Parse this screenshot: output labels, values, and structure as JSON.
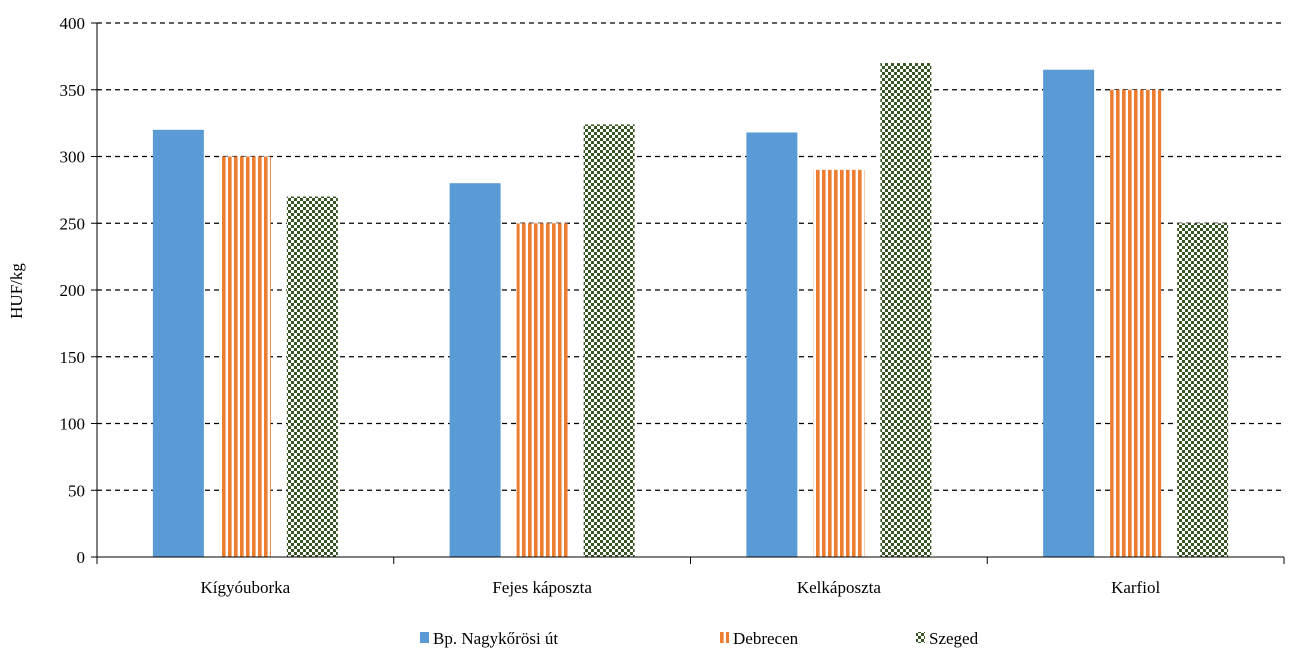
{
  "chart_data": {
    "type": "bar",
    "title": "",
    "xlabel": "",
    "ylabel": "HUF/kg",
    "ylim": [
      0,
      400
    ],
    "ytick_step": 50,
    "grid": "horizontal dashed",
    "legend_position": "bottom",
    "categories": [
      "Kígyóuborka",
      "Fejes káposzta",
      "Kelkáposzta",
      "Karfiol"
    ],
    "series": [
      {
        "name": "Bp. Nagykőrösi út",
        "values": [
          320,
          280,
          318,
          365
        ],
        "color": "#5B9BD5",
        "pattern": "solid"
      },
      {
        "name": "Debrecen",
        "values": [
          300,
          250,
          290,
          350
        ],
        "color": "#ED7D31",
        "pattern": "vertical-stripes"
      },
      {
        "name": "Szeged",
        "values": [
          270,
          324,
          370,
          250
        ],
        "color": "#375623",
        "pattern": "checkerboard"
      }
    ]
  }
}
